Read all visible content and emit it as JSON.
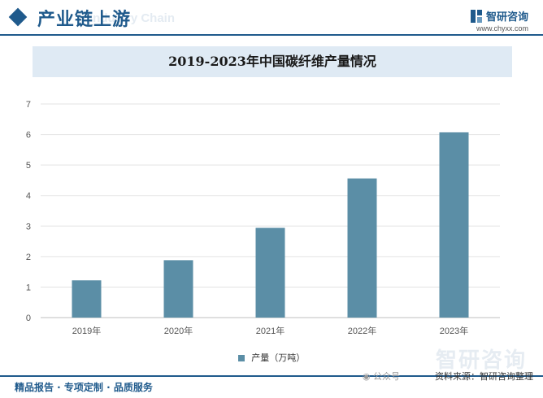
{
  "header": {
    "section_title": "产业链上游",
    "section_title_ghost": "Industry Chain",
    "brand_name": "智研咨询",
    "brand_url": "www.chyxx.com"
  },
  "chart_data": {
    "type": "bar",
    "title": "2019-2023年中国碳纤维产量情况",
    "categories": [
      "2019年",
      "2020年",
      "2021年",
      "2022年",
      "2023年"
    ],
    "series": [
      {
        "name": "产量（万吨）",
        "values": [
          1.22,
          1.88,
          2.94,
          4.56,
          6.07
        ],
        "color": "#5b8ea6"
      }
    ],
    "xlabel": "",
    "ylabel": "",
    "ylim": [
      0,
      7
    ],
    "yticks": [
      0,
      1,
      2,
      3,
      4,
      5,
      6,
      7
    ],
    "grid": true,
    "legend": "bottom-center"
  },
  "footer": {
    "left_text": "精品报告 · 专项定制 · 品质服务",
    "wechat_label": "公众号",
    "source_text": "资料来源：智研咨询整理",
    "watermark_brand": "智研咨询"
  },
  "colors": {
    "primary": "#1f5a8c",
    "bar": "#5b8ea6",
    "title_bg": "#dfeaf4"
  }
}
